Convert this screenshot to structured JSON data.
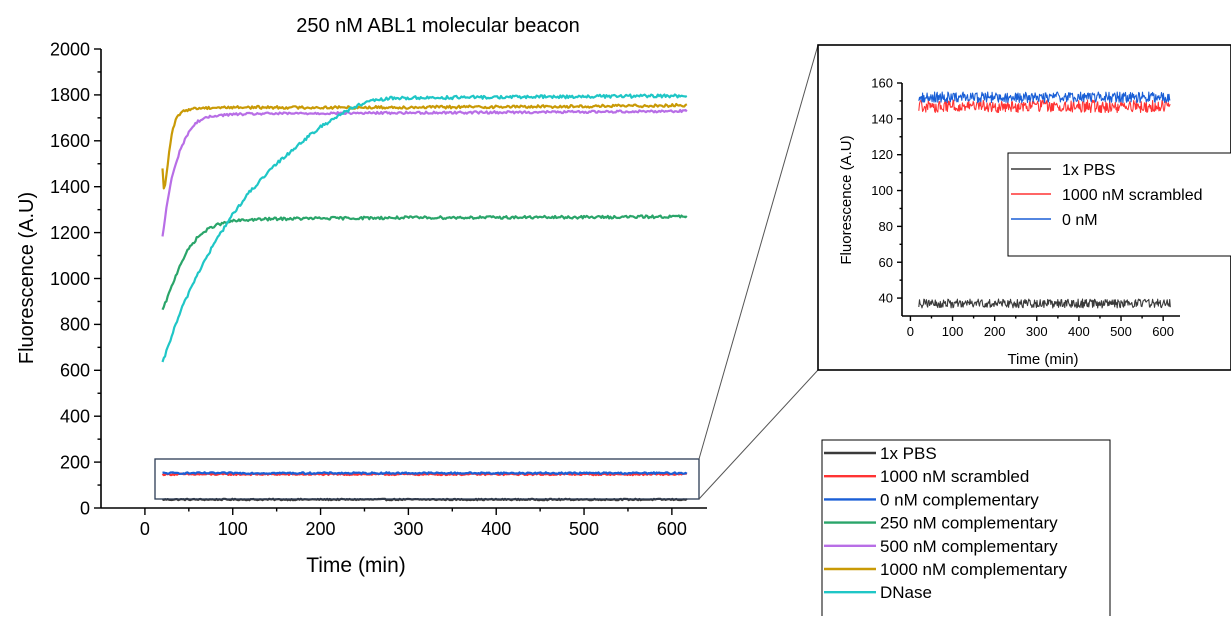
{
  "chart_data": [
    {
      "type": "line",
      "title": "250 nM ABL1 molecular beacon",
      "xlabel": "Time (min)",
      "ylabel": "Fluorescence (A.U)",
      "xlim": [
        -50,
        640
      ],
      "ylim": [
        0,
        2000
      ],
      "x_ticks": [
        "0",
        "100",
        "200",
        "300",
        "400",
        "500",
        "600"
      ],
      "y_ticks": [
        "0",
        "200",
        "400",
        "600",
        "800",
        "1000",
        "1200",
        "1400",
        "1600",
        "1800",
        "2000"
      ],
      "grid": false,
      "legend_position": "bottom-right",
      "series": [
        {
          "name": "1x PBS",
          "color": "#3a3a3a",
          "x": [
            20,
            100,
            200,
            300,
            400,
            500,
            617
          ],
          "y": [
            37,
            37,
            37,
            37,
            37,
            37,
            37
          ]
        },
        {
          "name": "1000 nM scrambled",
          "color": "#ff3333",
          "x": [
            20,
            100,
            200,
            300,
            400,
            500,
            617
          ],
          "y": [
            147,
            147,
            147,
            147,
            147,
            147,
            147
          ]
        },
        {
          "name": "0 nM complementary",
          "color": "#1a5fd6",
          "x": [
            20,
            100,
            200,
            300,
            400,
            500,
            617
          ],
          "y": [
            152,
            152,
            152,
            152,
            152,
            152,
            152
          ]
        },
        {
          "name": "250 nM complementary",
          "color": "#2aa56a",
          "x": [
            20,
            30,
            40,
            50,
            60,
            70,
            80,
            100,
            120,
            150,
            200,
            300,
            400,
            500,
            617
          ],
          "y": [
            860,
            960,
            1060,
            1130,
            1180,
            1210,
            1232,
            1250,
            1256,
            1260,
            1262,
            1265,
            1266,
            1267,
            1270
          ]
        },
        {
          "name": "500 nM complementary",
          "color": "#b86ee6",
          "x": [
            20,
            25,
            30,
            40,
            50,
            60,
            70,
            80,
            100,
            130,
            200,
            300,
            400,
            500,
            617
          ],
          "y": [
            1180,
            1320,
            1430,
            1560,
            1640,
            1685,
            1700,
            1710,
            1715,
            1718,
            1720,
            1722,
            1724,
            1726,
            1730
          ]
        },
        {
          "name": "1000 nM complementary",
          "color": "#c99a06",
          "x": [
            20,
            22,
            25,
            30,
            35,
            40,
            50,
            60,
            80,
            100,
            200,
            300,
            400,
            500,
            617
          ],
          "y": [
            1475,
            1370,
            1470,
            1620,
            1690,
            1720,
            1738,
            1742,
            1745,
            1746,
            1745,
            1746,
            1748,
            1750,
            1755
          ]
        },
        {
          "name": "DNase",
          "color": "#1fc6c6",
          "x": [
            20,
            30,
            40,
            50,
            60,
            80,
            100,
            120,
            150,
            180,
            200,
            220,
            240,
            260,
            280,
            300,
            400,
            500,
            617
          ],
          "y": [
            630,
            745,
            850,
            940,
            1020,
            1160,
            1280,
            1380,
            1500,
            1600,
            1660,
            1710,
            1750,
            1775,
            1785,
            1787,
            1790,
            1793,
            1796
          ]
        }
      ]
    },
    {
      "type": "line",
      "title": "",
      "xlabel": "Time (min)",
      "ylabel": "Fluorescence (A.U)",
      "xlim": [
        -20,
        640
      ],
      "ylim": [
        30,
        160
      ],
      "x_ticks": [
        "0",
        "100",
        "200",
        "300",
        "400",
        "500",
        "600"
      ],
      "y_ticks": [
        "40",
        "60",
        "80",
        "100",
        "120",
        "140",
        "160"
      ],
      "grid": false,
      "legend_position": "center-right",
      "series": [
        {
          "name": "1x PBS",
          "color": "#3a3a3a",
          "x": [
            20,
            100,
            200,
            300,
            400,
            500,
            617
          ],
          "y": [
            37,
            37,
            37,
            37,
            37,
            37,
            37
          ]
        },
        {
          "name": "1000 nM scrambled",
          "color": "#ff3333",
          "x": [
            20,
            100,
            200,
            300,
            400,
            500,
            617
          ],
          "y": [
            147,
            147,
            147,
            147,
            147,
            147,
            147
          ]
        },
        {
          "name": "0 nM",
          "color": "#1a5fd6",
          "x": [
            20,
            100,
            200,
            300,
            400,
            500,
            617
          ],
          "y": [
            152,
            152,
            152,
            152,
            152,
            152,
            152
          ]
        }
      ]
    }
  ]
}
